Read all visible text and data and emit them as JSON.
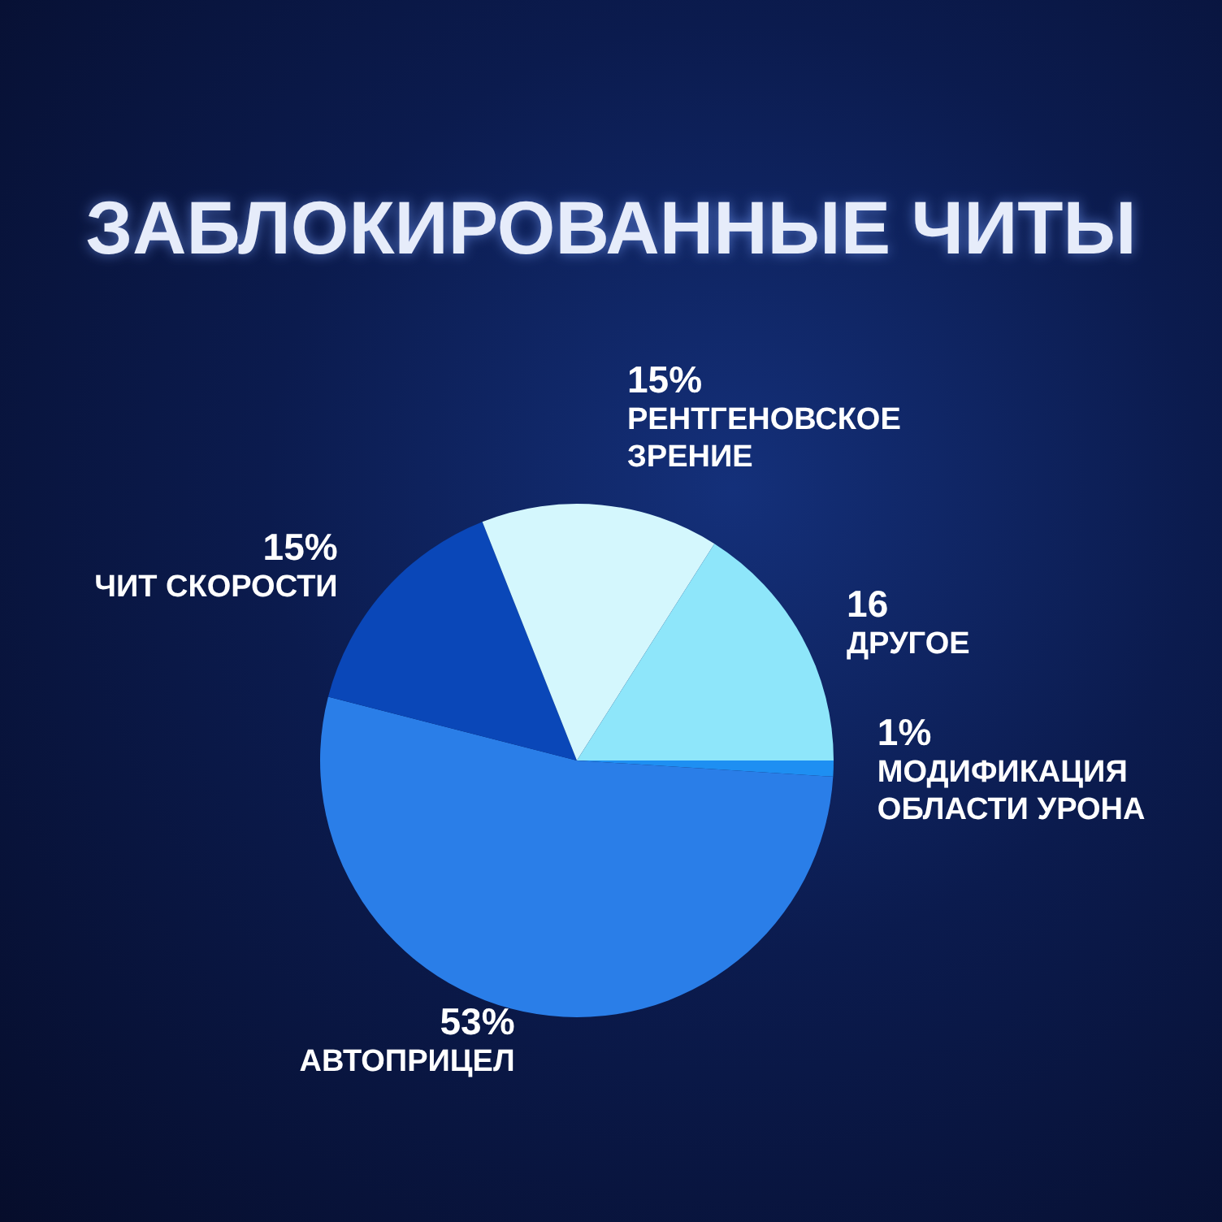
{
  "chart_data": {
    "type": "pie",
    "title": "ЗАБЛОКИРОВАННЫЕ ЧИТЫ",
    "categories": [
      "МОДИФИКАЦИЯ ОБЛАСТИ УРОНА",
      "АВТОПРИЦЕЛ",
      "ЧИТ СКОРОСТИ",
      "РЕНТГЕНОВСКОЕ ЗРЕНИЕ",
      "ДРУГОЕ"
    ],
    "values": [
      1,
      53,
      15,
      15,
      16
    ],
    "value_labels": [
      "1%",
      "53%",
      "15%",
      "15%",
      "16"
    ],
    "colors": [
      "#1e8ff2",
      "#2a7ee8",
      "#0a47b8",
      "#d4f7fd",
      "#8ee6fa"
    ]
  }
}
